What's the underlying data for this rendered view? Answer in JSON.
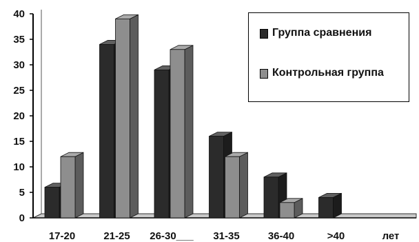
{
  "chart_data": {
    "type": "bar",
    "categories": [
      "17-20",
      "21-25",
      "26-30___",
      "31-35",
      "36-40",
      ">40",
      "лет"
    ],
    "series": [
      {
        "name": "Группа сравнения",
        "values": [
          6,
          34,
          29,
          16,
          8,
          4,
          0
        ],
        "color": "#2b2b2b"
      },
      {
        "name": "Контрольная группа",
        "values": [
          12,
          39,
          33,
          12,
          3,
          0,
          0
        ],
        "color": "#8e8e8e"
      }
    ],
    "yticks": [
      0,
      5,
      10,
      15,
      20,
      25,
      30,
      35,
      40
    ],
    "ylim": [
      0,
      40
    ],
    "grid": false,
    "legend_position": "top-right",
    "style": "3d-columns"
  },
  "legend": {
    "items": [
      {
        "label": "Группа сравнения"
      },
      {
        "label": "Контрольная группа"
      }
    ]
  }
}
